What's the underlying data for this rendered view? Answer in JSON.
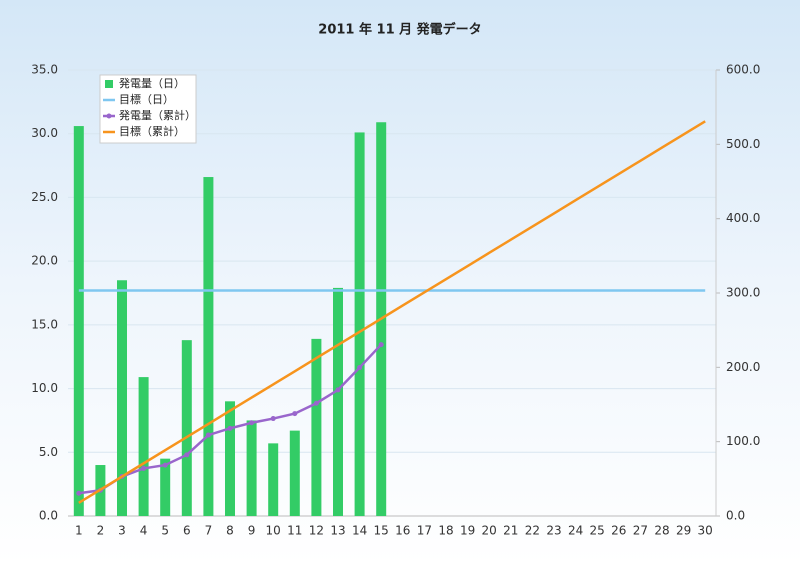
{
  "chart_data": {
    "type": "combo",
    "title": "2011 年 11 月 発電データ",
    "categories": [
      "1",
      "2",
      "3",
      "4",
      "5",
      "6",
      "7",
      "8",
      "9",
      "10",
      "11",
      "12",
      "13",
      "14",
      "15",
      "16",
      "17",
      "18",
      "19",
      "20",
      "21",
      "22",
      "23",
      "24",
      "25",
      "26",
      "27",
      "28",
      "29",
      "30"
    ],
    "series": [
      {
        "name": "発電量（日）",
        "type": "bar",
        "color": "#33cc66",
        "axis": "y",
        "values": [
          30.6,
          4.0,
          18.5,
          10.9,
          4.5,
          13.8,
          26.6,
          9.0,
          7.5,
          5.7,
          6.7,
          13.9,
          17.9,
          30.1,
          30.9,
          null,
          null,
          null,
          null,
          null,
          null,
          null,
          null,
          null,
          null,
          null,
          null,
          null,
          null,
          null
        ]
      },
      {
        "name": "目標（日）",
        "type": "line",
        "color": "#7fc7f0",
        "axis": "y",
        "values": [
          17.7,
          17.7,
          17.7,
          17.7,
          17.7,
          17.7,
          17.7,
          17.7,
          17.7,
          17.7,
          17.7,
          17.7,
          17.7,
          17.7,
          17.7,
          17.7,
          17.7,
          17.7,
          17.7,
          17.7,
          17.7,
          17.7,
          17.7,
          17.7,
          17.7,
          17.7,
          17.7,
          17.7,
          17.7,
          17.7
        ]
      },
      {
        "name": "発電量（累計）",
        "type": "line",
        "markers": true,
        "color": "#9966cc",
        "axis": "y2",
        "values": [
          30.6,
          34.6,
          53.1,
          64.0,
          68.5,
          82.3,
          108.9,
          117.9,
          125.4,
          131.1,
          137.8,
          151.7,
          169.6,
          199.7,
          230.6,
          null,
          null,
          null,
          null,
          null,
          null,
          null,
          null,
          null,
          null,
          null,
          null,
          null,
          null,
          null
        ]
      },
      {
        "name": "目標（累計）",
        "type": "line",
        "color": "#f7941d",
        "axis": "y2",
        "values": [
          17.7,
          35.4,
          53.1,
          70.8,
          88.5,
          106.2,
          123.9,
          141.6,
          159.3,
          177.0,
          194.7,
          212.4,
          230.1,
          247.8,
          265.5,
          283.2,
          300.9,
          318.6,
          336.3,
          354.0,
          371.7,
          389.4,
          407.1,
          424.8,
          442.5,
          460.2,
          477.9,
          495.6,
          513.3,
          531.0
        ]
      }
    ],
    "ylim": [
      0,
      35
    ],
    "yticks": [
      {
        "value": 0,
        "label": "0.0"
      },
      {
        "value": 5,
        "label": "5.0"
      },
      {
        "value": 10,
        "label": "10.0"
      },
      {
        "value": 15,
        "label": "15.0"
      },
      {
        "value": 20,
        "label": "20.0"
      },
      {
        "value": 25,
        "label": "25.0"
      },
      {
        "value": 30,
        "label": "30.0"
      },
      {
        "value": 35,
        "label": "35.0"
      }
    ],
    "y2lim": [
      0,
      600
    ],
    "y2ticks": [
      {
        "value": 0,
        "label": "0.0"
      },
      {
        "value": 100,
        "label": "100.0"
      },
      {
        "value": 200,
        "label": "200.0"
      },
      {
        "value": 300,
        "label": "300.0"
      },
      {
        "value": 400,
        "label": "400.0"
      },
      {
        "value": 500,
        "label": "500.0"
      },
      {
        "value": 600,
        "label": "600.0"
      }
    ],
    "grid": true,
    "legend": "upper left"
  }
}
